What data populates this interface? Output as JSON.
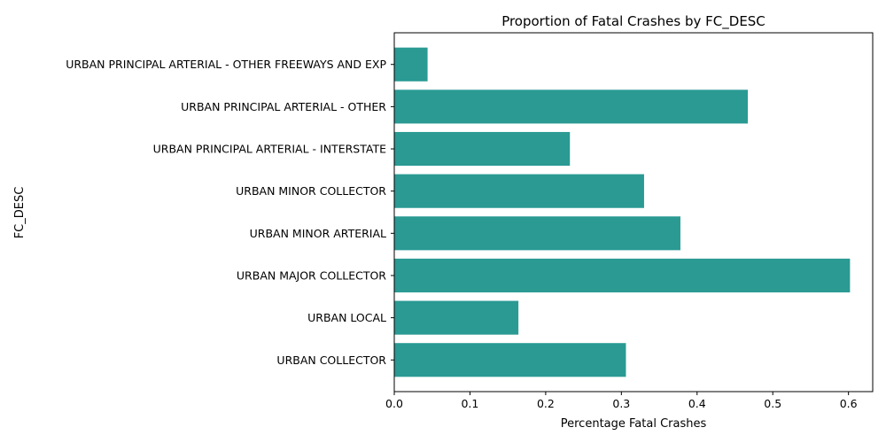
{
  "chart_data": {
    "type": "bar",
    "orientation": "horizontal",
    "title": "Proportion of Fatal Crashes by FC_DESC",
    "xlabel": "Percentage Fatal Crashes",
    "ylabel": "FC_DESC",
    "categories": [
      "URBAN COLLECTOR",
      "URBAN LOCAL",
      "URBAN MAJOR COLLECTOR",
      "URBAN MINOR ARTERIAL",
      "URBAN MINOR COLLECTOR",
      "URBAN PRINCIPAL ARTERIAL - INTERSTATE",
      "URBAN PRINCIPAL ARTERIAL - OTHER",
      "URBAN PRINCIPAL ARTERIAL - OTHER FREEWAYS AND EXP"
    ],
    "values": [
      0.306,
      0.164,
      0.602,
      0.378,
      0.33,
      0.232,
      0.467,
      0.044
    ],
    "xlim": [
      0,
      0.632
    ],
    "xticks": [
      0.0,
      0.1,
      0.2,
      0.3,
      0.4,
      0.5,
      0.6
    ],
    "xtick_labels": [
      "0.0",
      "0.1",
      "0.2",
      "0.3",
      "0.4",
      "0.5",
      "0.6"
    ],
    "grid": false,
    "legend": "none",
    "bar_color": "#2a9a93"
  }
}
